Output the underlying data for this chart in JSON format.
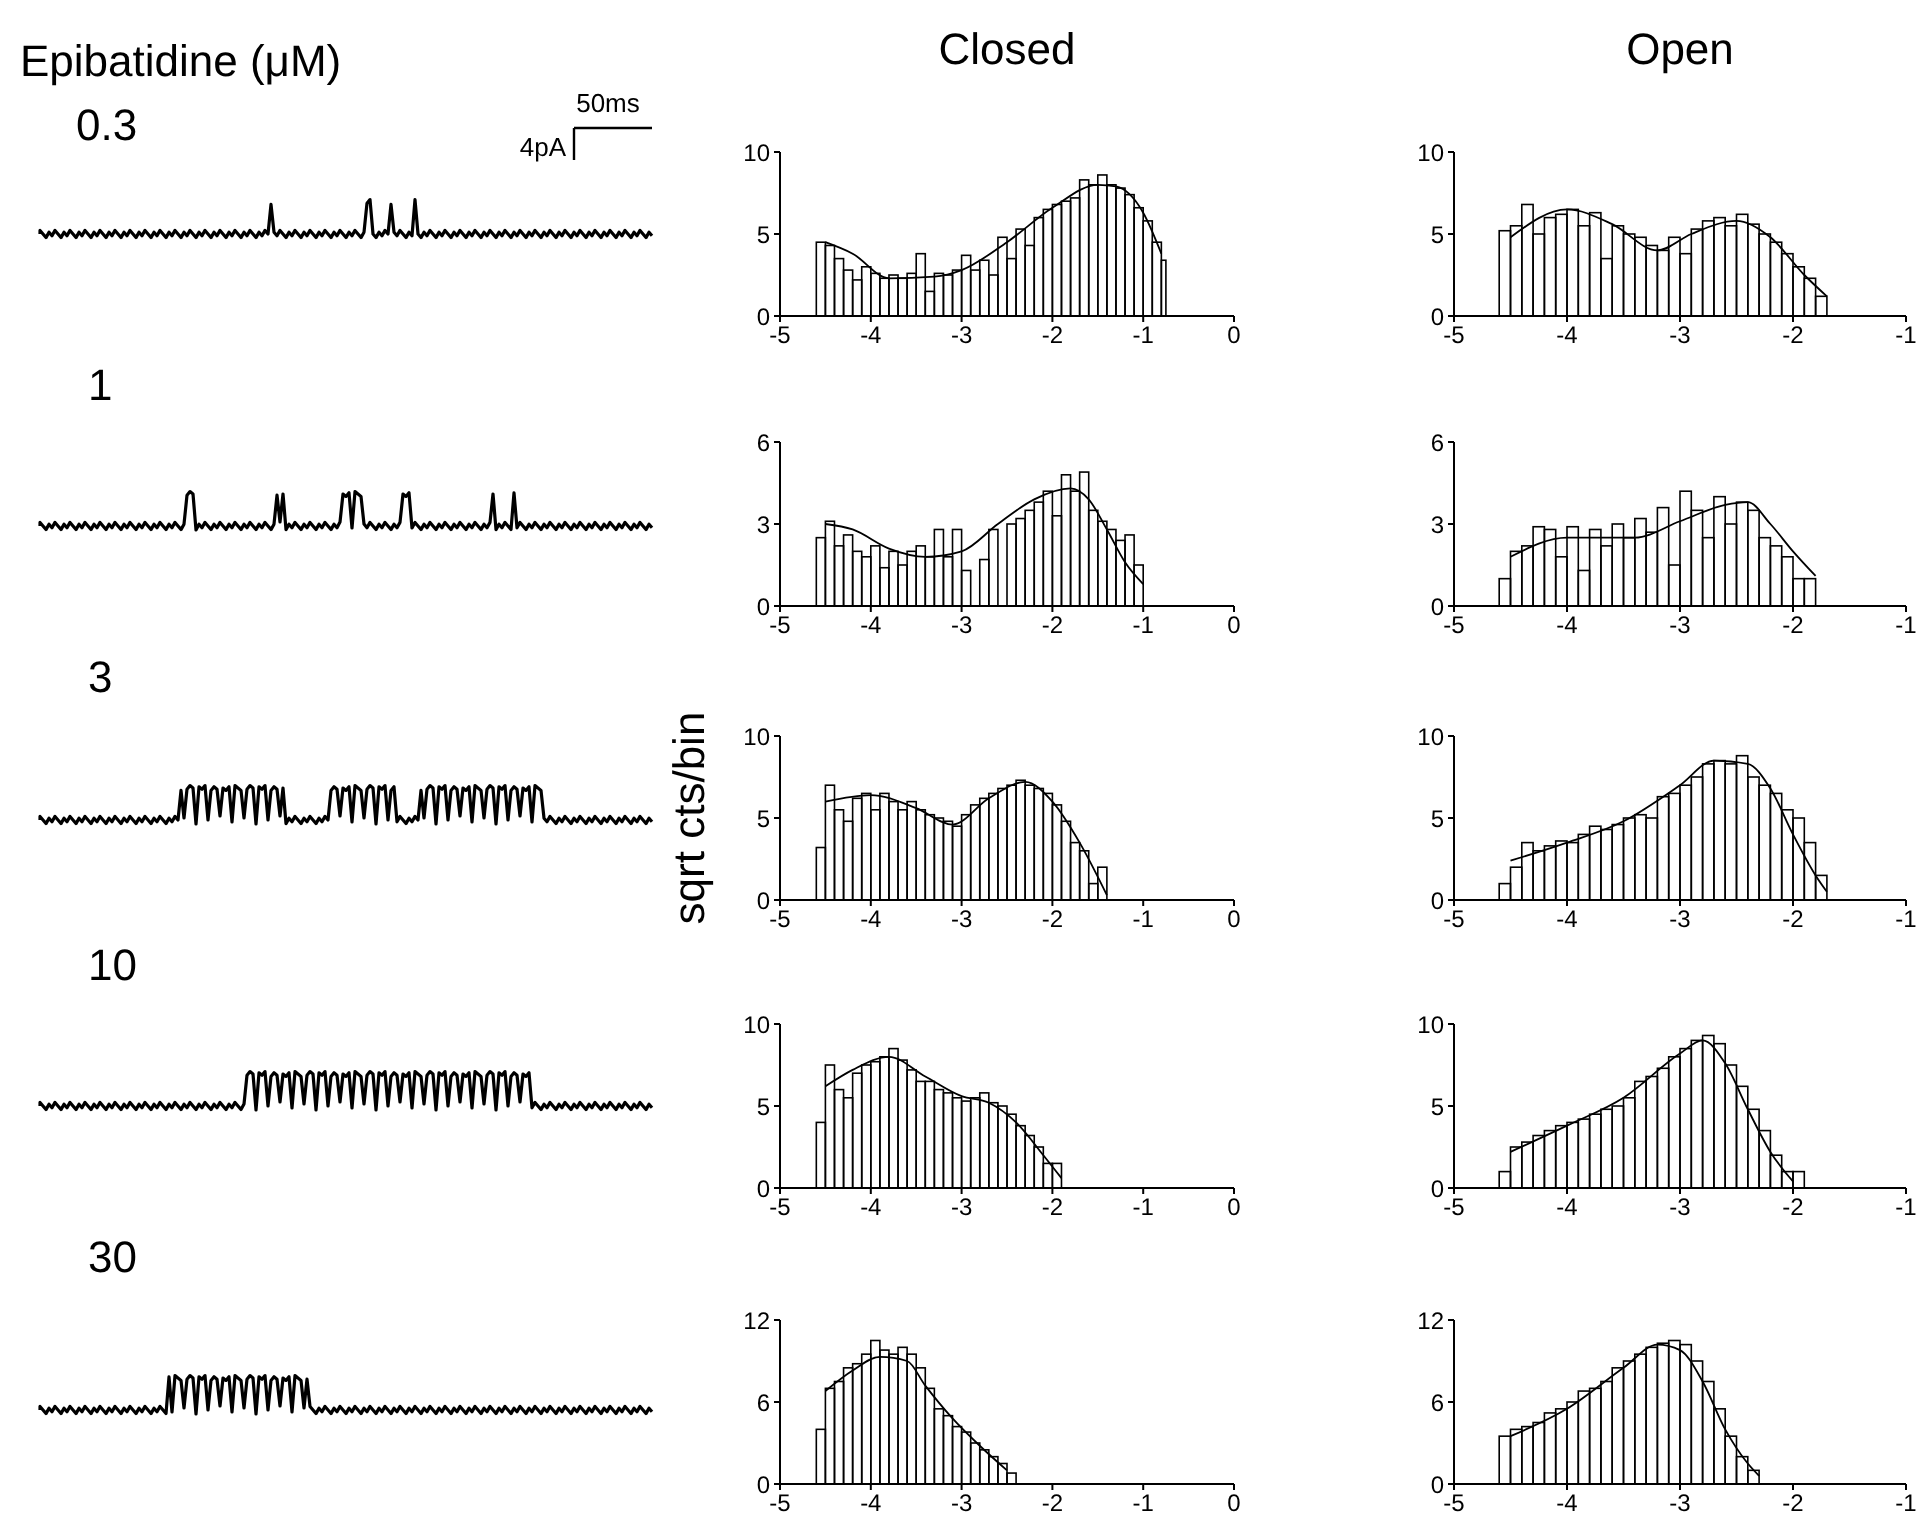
{
  "chart_data": [
    {
      "type": "other",
      "title": "Epibatidine (μM)",
      "categories": [
        "0.3",
        "1",
        "3",
        "10",
        "30"
      ],
      "annotations": [
        "50ms",
        "4pA"
      ]
    },
    {
      "type": "histogram",
      "title": "Closed",
      "xlim": [
        -5,
        0
      ],
      "xticks": [
        -5,
        -4,
        -3,
        -2,
        -1,
        0
      ],
      "ylim": [
        0,
        10
      ],
      "yticks": [
        0,
        5,
        10
      ],
      "series": [
        {
          "type": "histogram",
          "color": "#000000",
          "bins": [
            -4.6,
            -4.5,
            -4.4,
            -4.3,
            -4.2,
            -4.1,
            -4,
            -3.9,
            -3.8,
            -3.7,
            -3.6,
            -3.5,
            -3.4,
            -3.3,
            -3.2,
            -3.1,
            -3,
            -2.9,
            -2.8,
            -2.7,
            -2.6,
            -2.5,
            -2.4,
            -2.3,
            -2.2,
            -2.1,
            -2,
            -1.9,
            -1.8,
            -1.7,
            -1.6,
            -1.5,
            -1.4,
            -1.3,
            -1.2,
            -1.1,
            -1,
            -0.9,
            -0.8,
            -0.75
          ],
          "values": [
            4.5,
            4.3,
            3.5,
            2.8,
            2.2,
            3,
            2.6,
            2.3,
            2.5,
            2.3,
            2.6,
            3.8,
            1.5,
            2.6,
            2.5,
            2.8,
            3.7,
            2.8,
            3.4,
            2.5,
            4.8,
            3.5,
            5.3,
            4.3,
            6.0,
            6.5,
            6.8,
            7.0,
            7.2,
            8.3,
            8.0,
            8.6,
            8.0,
            7.8,
            7.4,
            6.6,
            5.8,
            4.5,
            3.4
          ]
        },
        {
          "type": "line",
          "color": "#000000",
          "x": [
            -4.5,
            -4.2,
            -3.8,
            -3.3,
            -3.0,
            -2.5,
            -2.0,
            -1.5,
            -1.3,
            -1.0,
            -0.8
          ],
          "values": [
            4.5,
            3.8,
            2.3,
            2.4,
            2.8,
            4.5,
            6.6,
            8.0,
            7.9,
            6.3,
            3.8
          ]
        }
      ]
    },
    {
      "type": "histogram",
      "title": "Open",
      "xlim": [
        -5,
        -1
      ],
      "xticks": [
        -5,
        -4,
        -3,
        -2,
        -1
      ],
      "ylim": [
        0,
        10
      ],
      "yticks": [
        0,
        5,
        10
      ],
      "series": [
        {
          "type": "histogram",
          "color": "#000000",
          "bins": [
            -4.6,
            -4.5,
            -4.4,
            -4.3,
            -4.2,
            -4.1,
            -4,
            -3.9,
            -3.8,
            -3.7,
            -3.6,
            -3.5,
            -3.4,
            -3.3,
            -3.2,
            -3.1,
            -3,
            -2.9,
            -2.8,
            -2.7,
            -2.6,
            -2.5,
            -2.4,
            -2.3,
            -2.2,
            -2.1,
            -2,
            -1.9,
            -1.8,
            -1.7
          ],
          "values": [
            5.2,
            5.5,
            6.8,
            5.0,
            6.0,
            6.2,
            6.5,
            5.5,
            6.3,
            3.5,
            5.5,
            5.0,
            4.8,
            4.3,
            4.0,
            4.8,
            3.8,
            5.3,
            5.8,
            6.0,
            5.5,
            6.2,
            5.6,
            5.0,
            4.5,
            3.8,
            3.0,
            2.3,
            1.2
          ]
        },
        {
          "type": "line",
          "color": "#000000",
          "x": [
            -4.5,
            -4.0,
            -3.6,
            -3.2,
            -2.9,
            -2.5,
            -2.2,
            -1.9,
            -1.7
          ],
          "values": [
            4.8,
            6.5,
            5.6,
            4.0,
            5.0,
            5.8,
            4.8,
            2.5,
            1.2
          ]
        }
      ]
    },
    {
      "type": "histogram",
      "xlim": [
        -5,
        0
      ],
      "xticks": [
        -5,
        -4,
        -3,
        -2,
        -1,
        0
      ],
      "ylim": [
        0,
        6
      ],
      "yticks": [
        0,
        3,
        6
      ],
      "series": [
        {
          "type": "histogram",
          "color": "#000000",
          "bins": [
            -4.6,
            -4.5,
            -4.4,
            -4.3,
            -4.2,
            -4.1,
            -4,
            -3.9,
            -3.8,
            -3.7,
            -3.6,
            -3.5,
            -3.4,
            -3.3,
            -3.2,
            -3.1,
            -3,
            -2.9,
            -2.8,
            -2.7,
            -2.6,
            -2.5,
            -2.4,
            -2.3,
            -2.2,
            -2.1,
            -2,
            -1.9,
            -1.8,
            -1.7,
            -1.6,
            -1.5,
            -1.4,
            -1.3,
            -1.2,
            -1.1,
            -1
          ],
          "values": [
            2.5,
            3.1,
            2.2,
            2.6,
            2.0,
            1.8,
            2.2,
            1.4,
            2.0,
            1.5,
            2.0,
            2.2,
            1.8,
            2.8,
            1.8,
            2.8,
            1.3,
            0,
            1.7,
            2.8,
            0,
            3.0,
            3.2,
            3.5,
            3.8,
            4.2,
            3.3,
            4.8,
            4.2,
            4.9,
            3.5,
            3.1,
            2.8,
            2.4,
            2.6,
            1.5
          ]
        },
        {
          "type": "line",
          "color": "#000000",
          "x": [
            -4.5,
            -4.2,
            -3.8,
            -3.4,
            -3.0,
            -2.6,
            -2.2,
            -1.8,
            -1.6,
            -1.4,
            -1.2,
            -1.0
          ],
          "values": [
            3.0,
            2.8,
            2.1,
            1.8,
            2.0,
            3.0,
            3.9,
            4.3,
            3.9,
            2.8,
            1.6,
            0.8
          ]
        }
      ]
    },
    {
      "type": "histogram",
      "xlim": [
        -5,
        -1
      ],
      "xticks": [
        -5,
        -4,
        -3,
        -2,
        -1
      ],
      "ylim": [
        0,
        6
      ],
      "yticks": [
        0,
        3,
        6
      ],
      "series": [
        {
          "type": "histogram",
          "color": "#000000",
          "bins": [
            -4.6,
            -4.5,
            -4.4,
            -4.3,
            -4.2,
            -4.1,
            -4,
            -3.9,
            -3.8,
            -3.7,
            -3.6,
            -3.5,
            -3.4,
            -3.3,
            -3.2,
            -3.1,
            -3,
            -2.9,
            -2.8,
            -2.7,
            -2.6,
            -2.5,
            -2.4,
            -2.3,
            -2.2,
            -2.1,
            -2,
            -1.9,
            -1.8
          ],
          "values": [
            1.0,
            2.0,
            2.2,
            2.9,
            2.8,
            1.8,
            2.9,
            1.3,
            2.8,
            2.2,
            3.0,
            2.5,
            3.2,
            2.7,
            3.6,
            1.5,
            4.2,
            3.5,
            2.5,
            4.0,
            3.0,
            3.8,
            3.5,
            2.5,
            2.2,
            1.8,
            1.0,
            1.0
          ]
        },
        {
          "type": "line",
          "color": "#000000",
          "x": [
            -4.5,
            -4.0,
            -3.4,
            -3.0,
            -2.6,
            -2.4,
            -2.2,
            -2.0,
            -1.8
          ],
          "values": [
            1.8,
            2.5,
            2.5,
            3.1,
            3.7,
            3.8,
            3.0,
            2.0,
            1.1
          ]
        }
      ]
    },
    {
      "type": "histogram",
      "ylabel": "sqrt cts/bin",
      "xlim": [
        -5,
        0
      ],
      "xticks": [
        -5,
        -4,
        -3,
        -2,
        -1,
        0
      ],
      "ylim": [
        0,
        10
      ],
      "yticks": [
        0,
        5,
        10
      ],
      "series": [
        {
          "type": "histogram",
          "color": "#000000",
          "bins": [
            -4.6,
            -4.5,
            -4.4,
            -4.3,
            -4.2,
            -4.1,
            -4,
            -3.9,
            -3.8,
            -3.7,
            -3.6,
            -3.5,
            -3.4,
            -3.3,
            -3.2,
            -3.1,
            -3,
            -2.9,
            -2.8,
            -2.7,
            -2.6,
            -2.5,
            -2.4,
            -2.3,
            -2.2,
            -2.1,
            -2,
            -1.9,
            -1.8,
            -1.7,
            -1.6,
            -1.5,
            -1.4
          ],
          "values": [
            3.2,
            7.0,
            5.5,
            4.8,
            6.2,
            6.5,
            5.5,
            6.5,
            6.0,
            5.5,
            6.0,
            5.5,
            5.2,
            5.0,
            4.8,
            4.5,
            5.2,
            5.8,
            6.2,
            6.5,
            6.8,
            7.0,
            7.3,
            7.0,
            6.8,
            6.5,
            5.8,
            4.8,
            3.5,
            3.0,
            1.0,
            2.0
          ]
        },
        {
          "type": "line",
          "color": "#000000",
          "x": [
            -4.5,
            -4.0,
            -3.5,
            -3.1,
            -2.7,
            -2.3,
            -2.0,
            -1.7,
            -1.4
          ],
          "values": [
            6.0,
            6.4,
            5.6,
            4.6,
            6.2,
            7.2,
            6.0,
            3.5,
            0.3
          ]
        }
      ]
    },
    {
      "type": "histogram",
      "xlim": [
        -5,
        -1
      ],
      "xticks": [
        -5,
        -4,
        -3,
        -2,
        -1
      ],
      "ylim": [
        0,
        10
      ],
      "yticks": [
        0,
        5,
        10
      ],
      "series": [
        {
          "type": "histogram",
          "color": "#000000",
          "bins": [
            -4.6,
            -4.5,
            -4.4,
            -4.3,
            -4.2,
            -4.1,
            -4,
            -3.9,
            -3.8,
            -3.7,
            -3.6,
            -3.5,
            -3.4,
            -3.3,
            -3.2,
            -3.1,
            -3,
            -2.9,
            -2.8,
            -2.7,
            -2.6,
            -2.5,
            -2.4,
            -2.3,
            -2.2,
            -2.1,
            -2,
            -1.9,
            -1.8,
            -1.7
          ],
          "values": [
            1.0,
            2.0,
            3.5,
            3.0,
            3.3,
            3.6,
            3.5,
            4.0,
            4.5,
            4.3,
            4.6,
            5.0,
            5.2,
            5.0,
            6.3,
            6.5,
            7.0,
            7.5,
            8.3,
            8.5,
            8.3,
            8.8,
            7.5,
            7.0,
            6.5,
            5.5,
            5.0,
            3.5,
            1.5
          ]
        },
        {
          "type": "line",
          "color": "#000000",
          "x": [
            -4.5,
            -4.0,
            -3.5,
            -3.0,
            -2.7,
            -2.4,
            -2.2,
            -2.0,
            -1.8,
            -1.7
          ],
          "values": [
            2.4,
            3.5,
            4.8,
            7.0,
            8.5,
            8.3,
            6.8,
            4.0,
            1.5,
            0.5
          ]
        }
      ]
    },
    {
      "type": "histogram",
      "xlim": [
        -5,
        0
      ],
      "xticks": [
        -5,
        -4,
        -3,
        -2,
        -1,
        0
      ],
      "ylim": [
        0,
        10
      ],
      "yticks": [
        0,
        5,
        10
      ],
      "series": [
        {
          "type": "histogram",
          "color": "#000000",
          "bins": [
            -4.6,
            -4.5,
            -4.4,
            -4.3,
            -4.2,
            -4.1,
            -4,
            -3.9,
            -3.8,
            -3.7,
            -3.6,
            -3.5,
            -3.4,
            -3.3,
            -3.2,
            -3.1,
            -3,
            -2.9,
            -2.8,
            -2.7,
            -2.6,
            -2.5,
            -2.4,
            -2.3,
            -2.2,
            -2.1,
            -2,
            -1.9
          ],
          "values": [
            4.0,
            7.5,
            6.0,
            5.5,
            7.0,
            7.5,
            7.7,
            8.0,
            8.5,
            7.8,
            7.2,
            6.5,
            6.5,
            6.0,
            5.8,
            5.5,
            5.3,
            5.5,
            5.8,
            5.2,
            5.0,
            4.5,
            3.8,
            3.2,
            2.5,
            1.5,
            1.5
          ]
        },
        {
          "type": "line",
          "color": "#000000",
          "x": [
            -4.5,
            -4.2,
            -3.8,
            -3.4,
            -3.0,
            -2.7,
            -2.4,
            -2.1,
            -1.9
          ],
          "values": [
            6.2,
            7.2,
            8.0,
            6.8,
            5.6,
            5.2,
            4.0,
            2.0,
            0.6
          ]
        }
      ]
    },
    {
      "type": "histogram",
      "xlim": [
        -5,
        -1
      ],
      "xticks": [
        -5,
        -4,
        -3,
        -2,
        -1
      ],
      "ylim": [
        0,
        10
      ],
      "yticks": [
        0,
        5,
        10
      ],
      "series": [
        {
          "type": "histogram",
          "color": "#000000",
          "bins": [
            -4.6,
            -4.5,
            -4.4,
            -4.3,
            -4.2,
            -4.1,
            -4,
            -3.9,
            -3.8,
            -3.7,
            -3.6,
            -3.5,
            -3.4,
            -3.3,
            -3.2,
            -3.1,
            -3,
            -2.9,
            -2.8,
            -2.7,
            -2.6,
            -2.5,
            -2.4,
            -2.3,
            -2.2,
            -2.1,
            -2,
            -1.9
          ],
          "values": [
            1.0,
            2.5,
            2.8,
            3.2,
            3.5,
            3.8,
            4.0,
            4.2,
            4.5,
            4.8,
            5.0,
            5.5,
            6.5,
            6.8,
            7.3,
            8.0,
            8.5,
            9.0,
            9.3,
            8.8,
            7.5,
            6.2,
            4.8,
            3.5,
            2.0,
            1.0,
            1.0
          ]
        },
        {
          "type": "line",
          "color": "#000000",
          "x": [
            -4.5,
            -4.0,
            -3.5,
            -3.0,
            -2.8,
            -2.6,
            -2.4,
            -2.2,
            -2.0
          ],
          "values": [
            2.2,
            3.8,
            5.5,
            8.2,
            9.0,
            7.6,
            4.8,
            2.2,
            0.4
          ]
        }
      ]
    },
    {
      "type": "histogram",
      "xlim": [
        -5,
        0
      ],
      "xticks": [
        -5,
        -4,
        -3,
        -2,
        -1,
        0
      ],
      "ylim": [
        0,
        12
      ],
      "yticks": [
        0,
        6,
        12
      ],
      "series": [
        {
          "type": "histogram",
          "color": "#000000",
          "bins": [
            -4.6,
            -4.5,
            -4.4,
            -4.3,
            -4.2,
            -4.1,
            -4,
            -3.9,
            -3.8,
            -3.7,
            -3.6,
            -3.5,
            -3.4,
            -3.3,
            -3.2,
            -3.1,
            -3,
            -2.9,
            -2.8,
            -2.7,
            -2.6,
            -2.5,
            -2.4
          ],
          "values": [
            4.0,
            7.0,
            7.5,
            8.5,
            8.8,
            9.5,
            10.5,
            9.8,
            9.5,
            10.0,
            9.5,
            8.5,
            7.0,
            5.5,
            5.0,
            4.2,
            3.8,
            3.0,
            2.5,
            2.0,
            1.5,
            0.8
          ]
        },
        {
          "type": "line",
          "color": "#000000",
          "x": [
            -4.5,
            -4.2,
            -3.9,
            -3.6,
            -3.4,
            -3.1,
            -2.8,
            -2.5
          ],
          "values": [
            6.8,
            8.3,
            9.3,
            9.0,
            7.2,
            4.8,
            2.8,
            1.0
          ]
        }
      ]
    },
    {
      "type": "histogram",
      "xlim": [
        -5,
        -1
      ],
      "xticks": [
        -5,
        -4,
        -3,
        -2,
        -1
      ],
      "ylim": [
        0,
        12
      ],
      "yticks": [
        0,
        6,
        12
      ],
      "series": [
        {
          "type": "histogram",
          "color": "#000000",
          "bins": [
            -4.6,
            -4.5,
            -4.4,
            -4.3,
            -4.2,
            -4.1,
            -4,
            -3.9,
            -3.8,
            -3.7,
            -3.6,
            -3.5,
            -3.4,
            -3.3,
            -3.2,
            -3.1,
            -3,
            -2.9,
            -2.8,
            -2.7,
            -2.6,
            -2.5,
            -2.4,
            -2.3
          ],
          "values": [
            3.5,
            4.0,
            4.2,
            4.5,
            5.2,
            5.5,
            6.0,
            6.8,
            7.0,
            7.5,
            8.5,
            9.0,
            9.5,
            10.0,
            10.3,
            10.5,
            10.2,
            9.0,
            7.5,
            5.5,
            3.5,
            2.0,
            1.0
          ]
        },
        {
          "type": "line",
          "color": "#000000",
          "x": [
            -4.5,
            -4.0,
            -3.5,
            -3.2,
            -3.0,
            -2.8,
            -2.6,
            -2.4,
            -2.3
          ],
          "values": [
            3.5,
            5.5,
            8.5,
            10.2,
            9.8,
            7.5,
            4.0,
            1.5,
            0.6
          ]
        }
      ]
    }
  ]
}
